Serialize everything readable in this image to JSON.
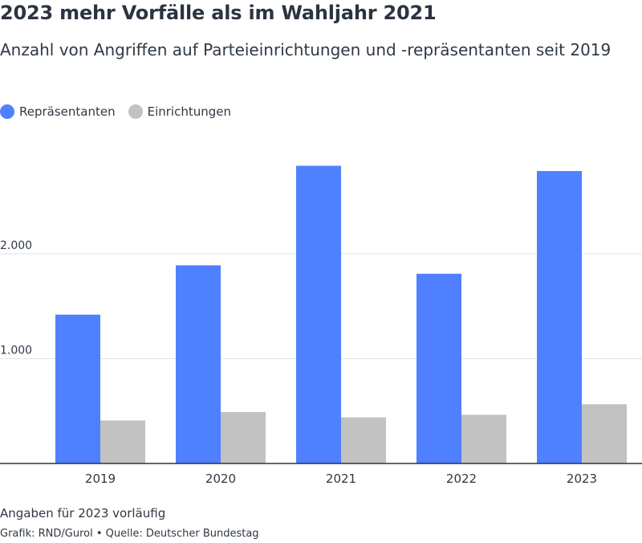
{
  "title": "2023 mehr Vorfälle als im Wahljahr 2021",
  "subtitle": "Anzahl von Angriffen auf Parteieinrichtungen und -repräsentanten seit 2019",
  "footnote": "Angaben für 2023 vorläufig",
  "credit": "Grafik: RND/Gurol • Quelle: Deutscher Bundestag",
  "colors": {
    "repraesentanten": "#4f80ff",
    "einrichtungen": "#c2c2c2",
    "grid": "#e3e3e3",
    "axis": "#333333"
  },
  "chart_data": {
    "type": "bar",
    "title": "2023 mehr Vorfälle als im Wahljahr 2021",
    "subtitle": "Anzahl von Angriffen auf Parteieinrichtungen und -repräsentanten seit 2019",
    "xlabel": "",
    "ylabel": "",
    "categories": [
      "2019",
      "2020",
      "2021",
      "2022",
      "2023"
    ],
    "series": [
      {
        "name": "Repräsentanten",
        "values": [
          1420,
          1890,
          2840,
          1810,
          2790
        ]
      },
      {
        "name": "Einrichtungen",
        "values": [
          410,
          490,
          440,
          465,
          565
        ]
      }
    ],
    "ylim": [
      0,
      3000
    ],
    "yticks": [
      {
        "value": 1000,
        "label": "1.000"
      },
      {
        "value": 2000,
        "label": "2.000"
      }
    ],
    "grid": true,
    "legend": "top-left"
  }
}
